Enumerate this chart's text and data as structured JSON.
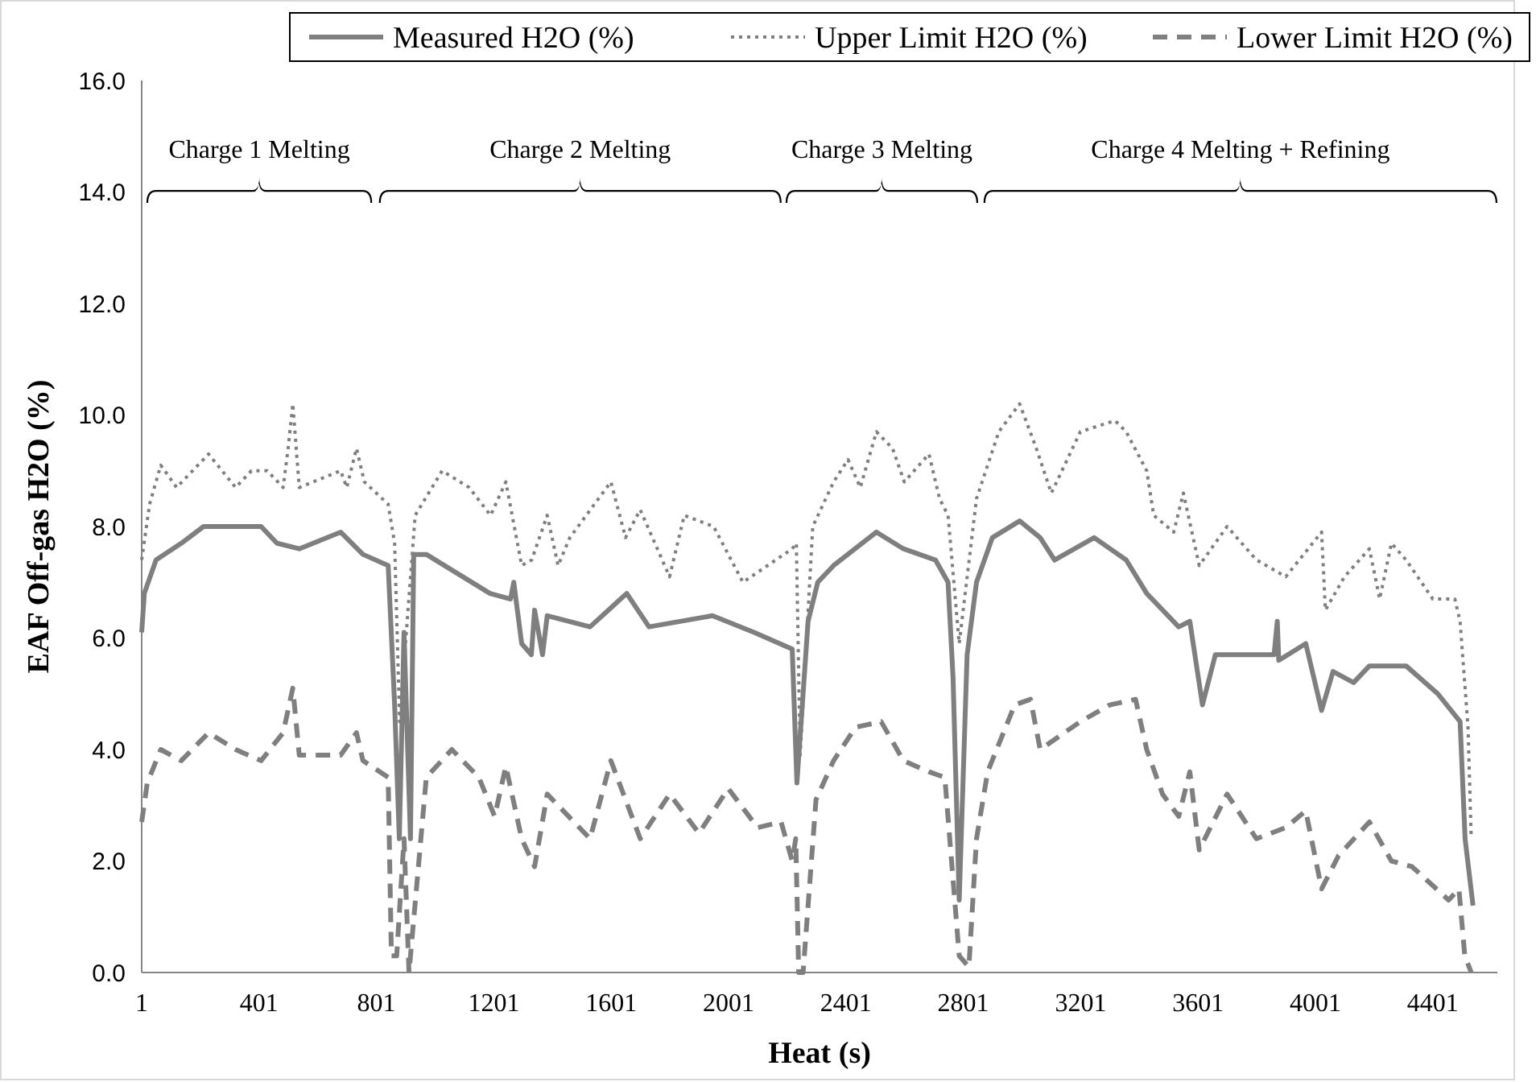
{
  "chart_data": {
    "type": "line",
    "xlabel": "Heat (s)",
    "ylabel": "EAF Off-gas H2O (%)",
    "legend": "top right",
    "grid": false,
    "xlim": [
      1,
      4621
    ],
    "xticks": [
      1,
      401,
      801,
      1201,
      1601,
      2001,
      2401,
      2801,
      3201,
      3601,
      4001,
      4401
    ],
    "ylim": [
      0,
      16
    ],
    "yticks": [
      {
        "value": 0,
        "label": "0.0"
      },
      {
        "value": 2,
        "label": "2.0"
      },
      {
        "value": 4,
        "label": "4.0"
      },
      {
        "value": 6,
        "label": "6.0"
      },
      {
        "value": 8,
        "label": "8.0"
      },
      {
        "value": 10,
        "label": "10.0"
      },
      {
        "value": 12,
        "label": "12.0"
      },
      {
        "value": 14,
        "label": "14.0"
      },
      {
        "value": 16,
        "label": "16.0"
      }
    ],
    "annotations": [
      "Charge 1 Melting",
      "Charge 2 Melting",
      "Charge 3 Melting",
      "Charge 4 Melting + Refining"
    ],
    "series": [
      {
        "name": "Measured H2O (%)",
        "color": "#7f7f7f",
        "line_style": "solid",
        "x": [
          1,
          10,
          50,
          136,
          212,
          408,
          462,
          538,
          679,
          755,
          841,
          863,
          879,
          895,
          917,
          928,
          971,
          1188,
          1258,
          1269,
          1296,
          1329,
          1340,
          1367,
          1383,
          1529,
          1654,
          1730,
          1946,
          2088,
          2218,
          2234,
          2272,
          2305,
          2359,
          2505,
          2597,
          2706,
          2749,
          2766,
          2787,
          2814,
          2846,
          2900,
          2993,
          3063,
          3112,
          3247,
          3356,
          3426,
          3535,
          3573,
          3616,
          3660,
          3860,
          3871,
          3876,
          3968,
          4022,
          4061,
          4131,
          4185,
          4310,
          4418,
          4494,
          4511,
          4538
        ],
        "values": [
          6.1,
          6.8,
          7.4,
          7.7,
          8.0,
          8.0,
          7.7,
          7.6,
          7.9,
          7.5,
          7.3,
          4.8,
          2.4,
          6.1,
          2.4,
          7.5,
          7.5,
          6.8,
          6.7,
          7.0,
          5.9,
          5.7,
          6.5,
          5.7,
          6.4,
          6.2,
          6.8,
          6.2,
          6.4,
          6.1,
          5.8,
          3.4,
          6.3,
          7.0,
          7.3,
          7.9,
          7.6,
          7.4,
          7.0,
          5.3,
          1.3,
          5.7,
          7.0,
          7.8,
          8.1,
          7.8,
          7.4,
          7.8,
          7.4,
          6.8,
          6.2,
          6.3,
          4.8,
          5.7,
          5.7,
          6.3,
          5.6,
          5.9,
          4.7,
          5.4,
          5.2,
          5.5,
          5.5,
          5.0,
          4.5,
          2.4,
          1.2
        ]
      },
      {
        "name": "Upper Limit H2O (%)",
        "color": "#7f7f7f",
        "line_style": "dotted",
        "x": [
          1,
          28,
          66,
          120,
          229,
          321,
          375,
          429,
          483,
          500,
          516,
          538,
          679,
          700,
          733,
          760,
          841,
          863,
          880,
          933,
          1025,
          1117,
          1190,
          1242,
          1296,
          1330,
          1383,
          1420,
          1460,
          1600,
          1650,
          1700,
          1800,
          1850,
          1950,
          2050,
          2218,
          2232,
          2245,
          2288,
          2359,
          2408,
          2450,
          2505,
          2560,
          2600,
          2684,
          2720,
          2749,
          2787,
          2846,
          2922,
          2993,
          3050,
          3101,
          3200,
          3318,
          3356,
          3426,
          3450,
          3518,
          3551,
          3605,
          3700,
          3800,
          3900,
          4022,
          4035,
          4100,
          4185,
          4220,
          4260,
          4310,
          4401,
          4476,
          4494,
          4521,
          4532
        ],
        "values": [
          7.4,
          8.4,
          9.1,
          8.7,
          9.3,
          8.7,
          9.0,
          9.0,
          8.7,
          9.4,
          10.2,
          8.7,
          9.0,
          8.7,
          9.4,
          8.8,
          8.4,
          7.7,
          4.5,
          8.2,
          9.0,
          8.7,
          8.2,
          8.8,
          7.3,
          7.4,
          8.2,
          7.3,
          7.8,
          8.8,
          7.8,
          8.3,
          7.1,
          8.2,
          8.0,
          7.0,
          7.6,
          7.7,
          3.9,
          8.0,
          8.8,
          9.2,
          8.7,
          9.7,
          9.4,
          8.8,
          9.3,
          8.5,
          8.2,
          5.9,
          8.5,
          9.7,
          10.2,
          9.4,
          8.6,
          9.7,
          9.9,
          9.7,
          9.0,
          8.2,
          7.9,
          8.6,
          7.3,
          8.0,
          7.4,
          7.1,
          7.9,
          6.5,
          7.1,
          7.6,
          6.7,
          7.7,
          7.4,
          6.7,
          6.7,
          6.3,
          4.4,
          2.4
        ]
      },
      {
        "name": "Lower Limit H2O (%)",
        "color": "#7f7f7f",
        "line_style": "dashed",
        "x": [
          1,
          20,
          66,
          136,
          229,
          321,
          408,
          483,
          516,
          538,
          679,
          733,
          755,
          841,
          852,
          870,
          895,
          912,
          971,
          1058,
          1150,
          1204,
          1242,
          1296,
          1340,
          1383,
          1529,
          1600,
          1700,
          1800,
          1900,
          2000,
          2100,
          2180,
          2218,
          2230,
          2240,
          2255,
          2299,
          2359,
          2434,
          2521,
          2597,
          2684,
          2738,
          2787,
          2820,
          2846,
          2884,
          2976,
          3030,
          3063,
          3200,
          3300,
          3388,
          3426,
          3480,
          3535,
          3573,
          3605,
          3700,
          3800,
          3900,
          3968,
          4022,
          4080,
          4185,
          4260,
          4330,
          4455,
          4490,
          4510,
          4532
        ],
        "values": [
          2.7,
          3.4,
          4.0,
          3.8,
          4.3,
          4.0,
          3.8,
          4.3,
          5.1,
          3.9,
          3.9,
          4.3,
          3.8,
          3.5,
          0.3,
          0.3,
          2.4,
          0.0,
          3.5,
          4.0,
          3.5,
          2.8,
          3.7,
          2.4,
          1.9,
          3.2,
          2.4,
          3.8,
          2.4,
          3.2,
          2.5,
          3.3,
          2.6,
          2.7,
          2.0,
          2.4,
          0.0,
          0.0,
          3.1,
          3.8,
          4.4,
          4.5,
          3.8,
          3.6,
          3.5,
          0.3,
          0.1,
          2.4,
          3.6,
          4.8,
          4.9,
          4.0,
          4.5,
          4.8,
          4.9,
          4.0,
          3.2,
          2.8,
          3.6,
          2.2,
          3.2,
          2.4,
          2.6,
          2.9,
          1.5,
          2.1,
          2.7,
          2.0,
          1.9,
          1.3,
          1.5,
          0.3,
          0.0
        ]
      }
    ]
  }
}
